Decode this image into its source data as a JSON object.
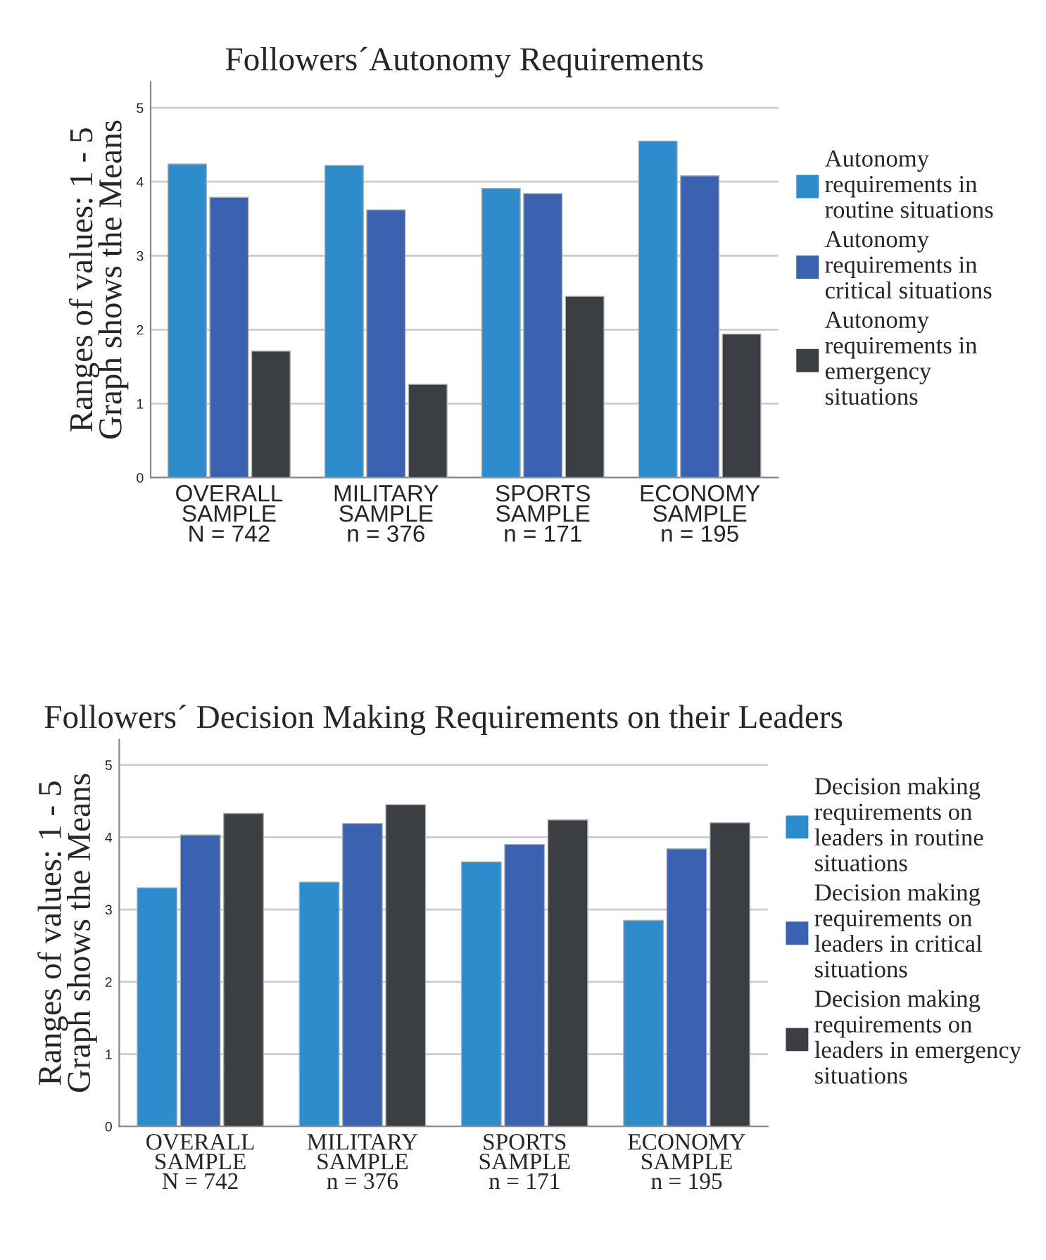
{
  "chart_data": [
    {
      "type": "bar",
      "title": "Followers´Autonomy Requirements",
      "ylabel": "Ranges of values: 1 - 5\nGraph shows the Means",
      "categories": [
        "OVERALL\nSAMPLE\nN = 742",
        "MILITARY\nSAMPLE\nn = 376",
        "SPORTS\nSAMPLE\nn = 171",
        "ECONOMY\nSAMPLE\nn = 195"
      ],
      "series": [
        {
          "name": "Autonomy\nrequirements in\nroutine situations",
          "color": "#2e8bcc",
          "values": [
            4.24,
            4.22,
            3.91,
            4.55
          ]
        },
        {
          "name": "Autonomy\nrequirements in\ncritical situations",
          "color": "#3a62b0",
          "values": [
            3.79,
            3.62,
            3.84,
            4.08
          ]
        },
        {
          "name": "Autonomy\nrequirements in\nemergency\nsituations",
          "color": "#3b3e42",
          "values": [
            1.71,
            1.26,
            2.45,
            1.94
          ]
        }
      ],
      "ylim": [
        0,
        5.35
      ],
      "yticks": [
        0,
        1,
        2,
        3,
        4,
        5
      ],
      "grid": "y",
      "legend": "right"
    },
    {
      "type": "bar",
      "title": "Followers´ Decision Making Requirements on their Leaders",
      "ylabel": "Ranges of values: 1 - 5\nGraph shows the Means",
      "categories": [
        "OVERALL\nSAMPLE\nN = 742",
        "MILITARY\nSAMPLE\nn = 376",
        "SPORTS\nSAMPLE\nn = 171",
        "ECONOMY\nSAMPLE\nn = 195"
      ],
      "series": [
        {
          "name": "Decision making\nrequirements on\nleaders in routine\nsituations",
          "color": "#2e8bcc",
          "values": [
            3.3,
            3.38,
            3.66,
            2.85
          ]
        },
        {
          "name": "Decision making\nrequirements on\nleaders in critical\nsituations",
          "color": "#3a62b0",
          "values": [
            4.03,
            4.19,
            3.9,
            3.84
          ]
        },
        {
          "name": "Decision making\nrequirements on\nleaders in emergency\nsituations",
          "color": "#3b3e42",
          "values": [
            4.33,
            4.45,
            4.24,
            4.2
          ]
        }
      ],
      "ylim": [
        0,
        5.35
      ],
      "yticks": [
        0,
        1,
        2,
        3,
        4,
        5
      ],
      "grid": "y",
      "legend": "right"
    }
  ]
}
